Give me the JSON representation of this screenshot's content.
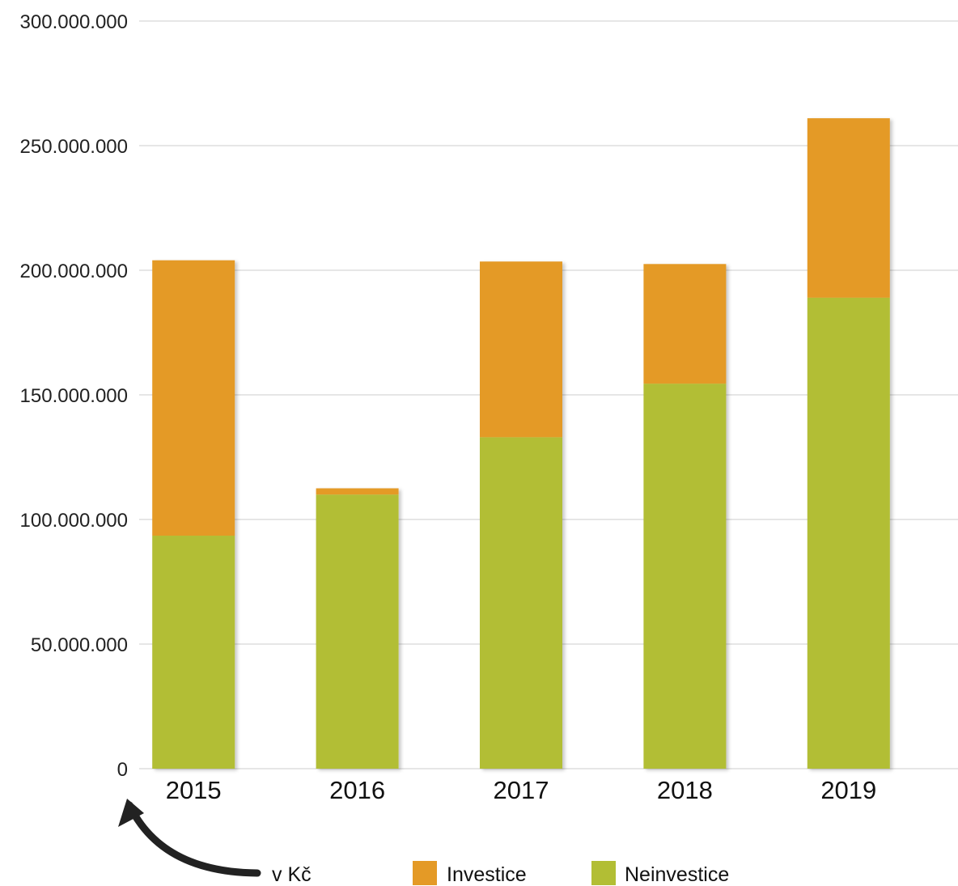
{
  "chart_data": {
    "type": "bar",
    "stacked": true,
    "categories": [
      "2015",
      "2016",
      "2017",
      "2018",
      "2019"
    ],
    "series": [
      {
        "name": "Neinvestice",
        "color": "#b2be34",
        "values": [
          93500000,
          110000000,
          133000000,
          154500000,
          189000000
        ]
      },
      {
        "name": "Investice",
        "color": "#e49a26",
        "values": [
          110500000,
          2500000,
          70500000,
          48000000,
          72000000
        ]
      }
    ],
    "ylim": [
      0,
      300000000
    ],
    "yticks": [
      0,
      50000000,
      100000000,
      150000000,
      200000000,
      250000000,
      300000000
    ],
    "ytick_labels": [
      "0",
      "50.000.000",
      "100.000.000",
      "150.000.000",
      "200.000.000",
      "250.000.000",
      "300.000.000"
    ],
    "grid": true,
    "legend_placement": "bottom",
    "unit_note": "v Kč",
    "legend": [
      {
        "label": "Investice",
        "color": "#e49a26"
      },
      {
        "label": "Neinvestice",
        "color": "#b2be34"
      }
    ],
    "colors": {
      "grid": "#cccccc",
      "arrow": "#222222"
    }
  }
}
